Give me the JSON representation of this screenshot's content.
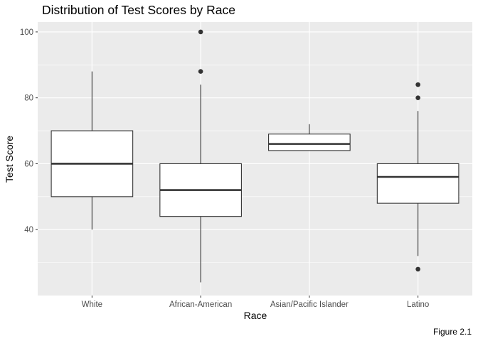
{
  "chart_data": {
    "type": "boxplot",
    "title": "Distribution of Test Scores by Race",
    "xlabel": "Race",
    "ylabel": "Test Score",
    "caption": "Figure 2.1",
    "ylim": [
      20,
      103
    ],
    "yticks": [
      40,
      60,
      80,
      100
    ],
    "grid": true,
    "categories": [
      "White",
      "African-American",
      "Asian/Pacific Islander",
      "Latino"
    ],
    "boxes": [
      {
        "category": "White",
        "whisker_low": 40,
        "q1": 50,
        "median": 60,
        "q3": 70,
        "whisker_high": 88,
        "outliers": []
      },
      {
        "category": "African-American",
        "whisker_low": 24,
        "q1": 44,
        "median": 52,
        "q3": 60,
        "whisker_high": 84,
        "outliers": [
          88,
          100
        ]
      },
      {
        "category": "Asian/Pacific Islander",
        "whisker_low": 64,
        "q1": 64,
        "median": 66,
        "q3": 69,
        "whisker_high": 72,
        "outliers": []
      },
      {
        "category": "Latino",
        "whisker_low": 32,
        "q1": 48,
        "median": 56,
        "q3": 60,
        "whisker_high": 76,
        "outliers": [
          28,
          80,
          84
        ]
      }
    ],
    "colors": {
      "panel": "#ebebeb",
      "grid_major": "#ffffff",
      "box_fill": "#ffffff",
      "box_stroke": "#333333",
      "outlier": "#333333",
      "tick_text": "#4d4d4d",
      "title_text": "#000000"
    }
  }
}
